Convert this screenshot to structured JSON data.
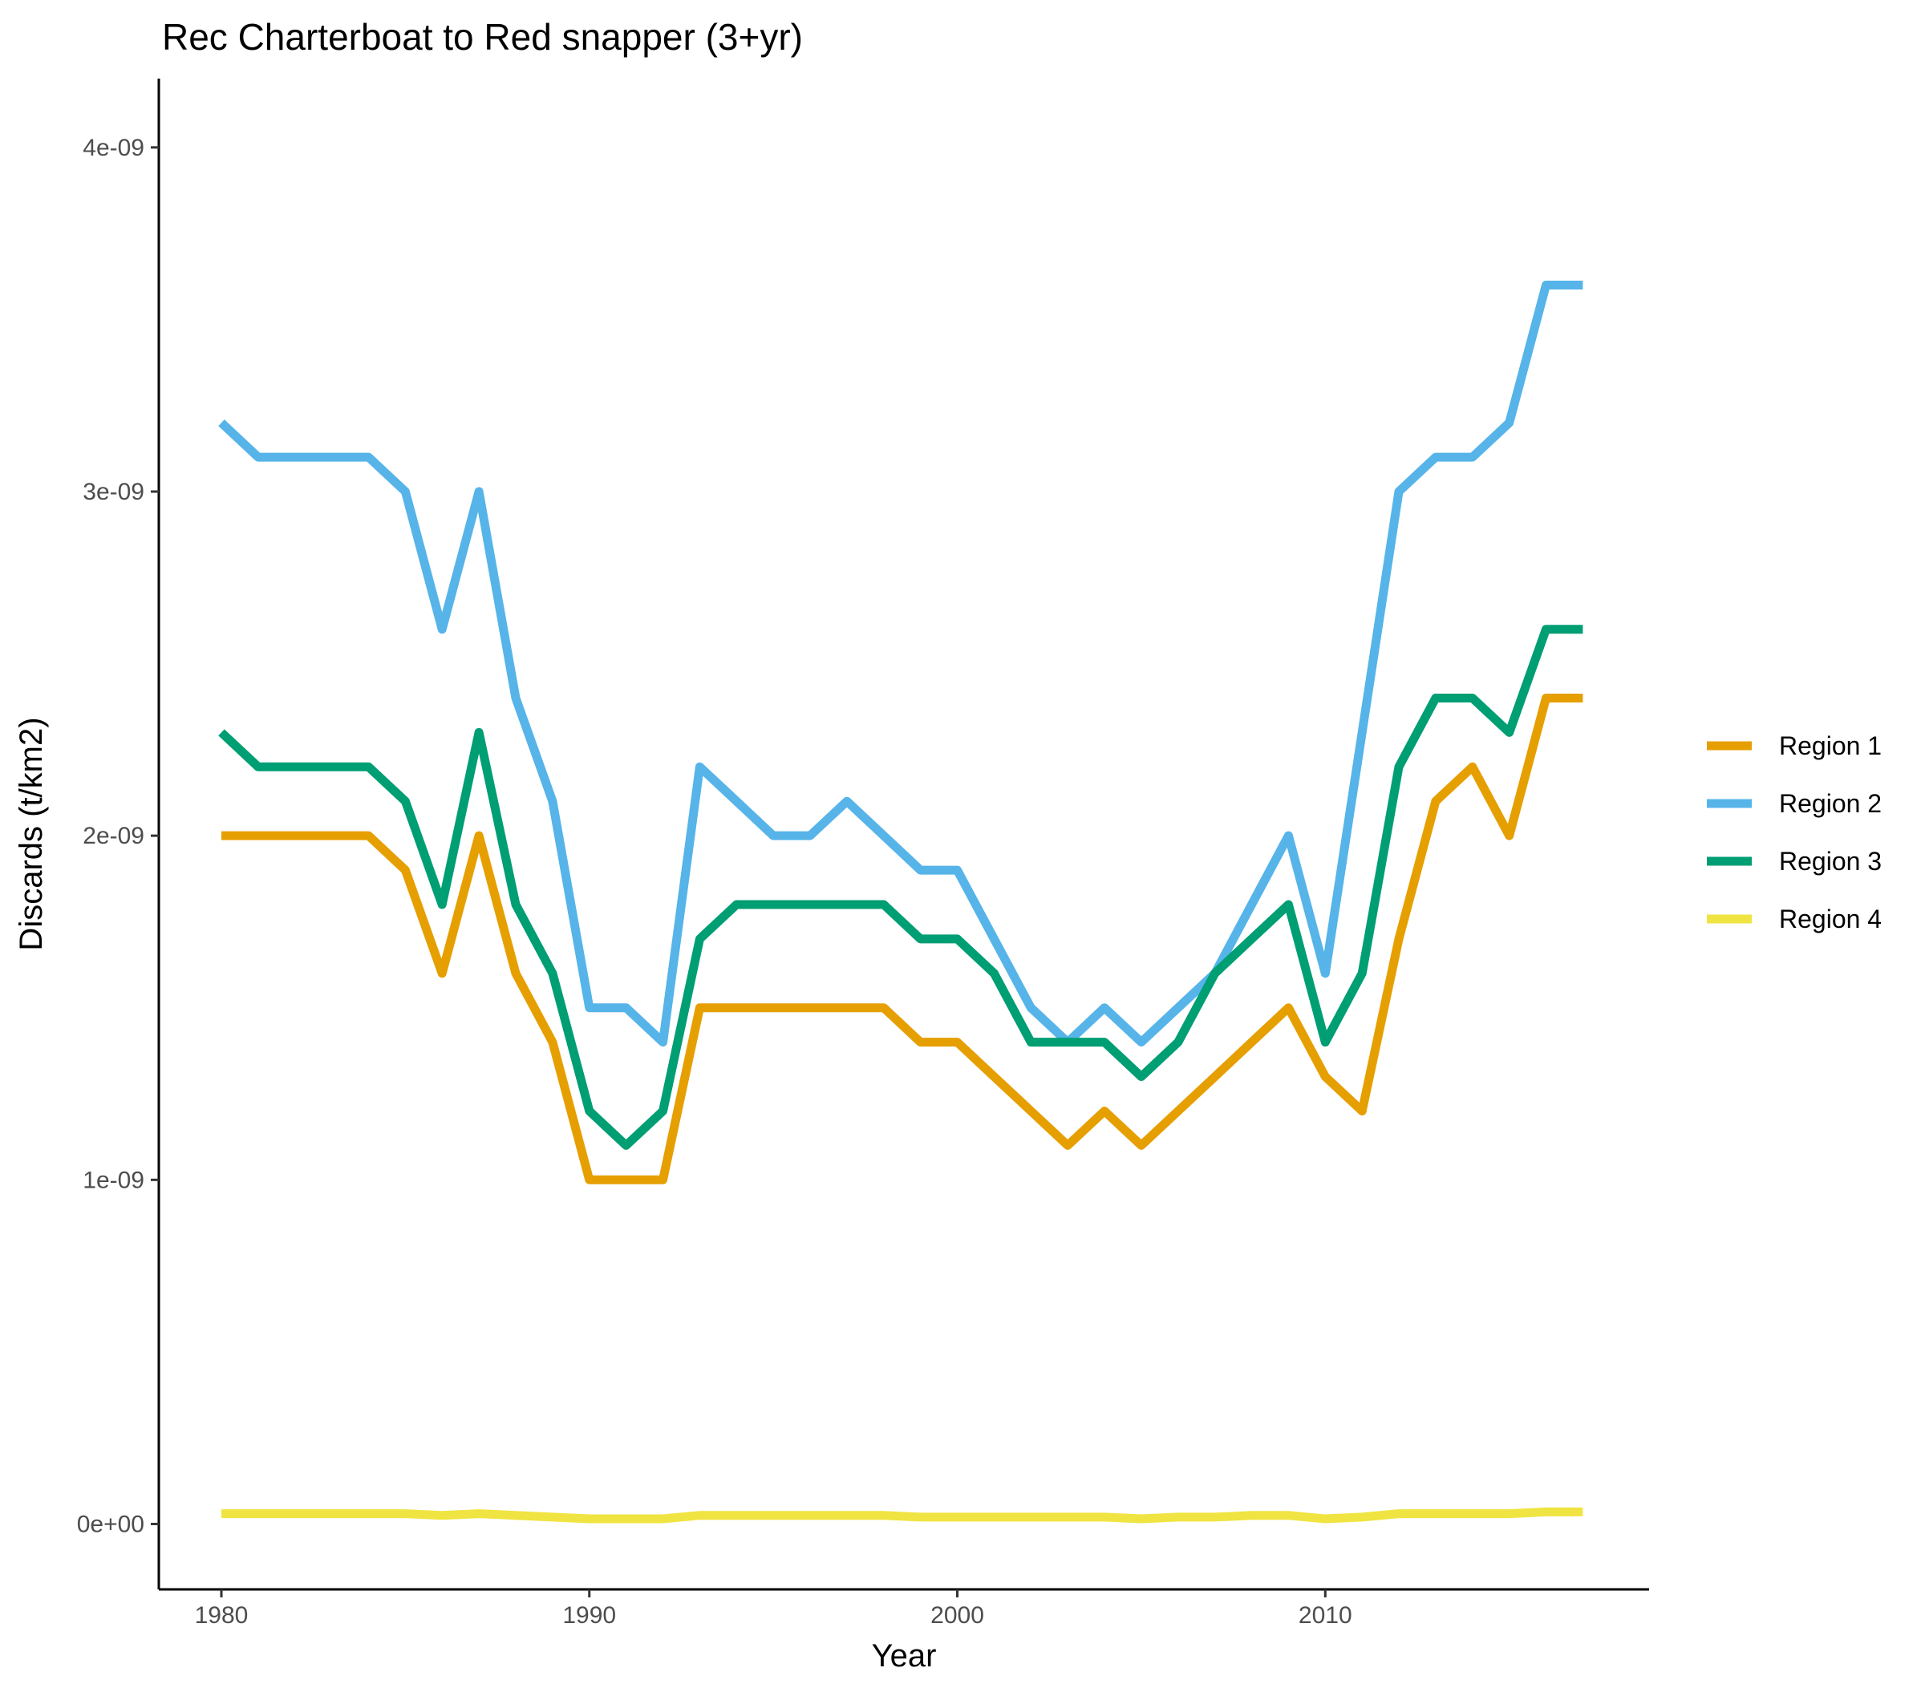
{
  "chart_data": {
    "type": "line",
    "title": "Rec Charterboat to Red snapper (3+yr)",
    "xlabel": "Year",
    "ylabel": "Discards (t/km2)",
    "xlim": [
      1978.3,
      2018.8
    ],
    "ylim": [
      -1.9e-10,
      4.2e-09
    ],
    "x_ticks": [
      1980,
      1990,
      2000,
      2010
    ],
    "x_tick_labels": [
      "1980",
      "1990",
      "2000",
      "2010"
    ],
    "y_ticks": [
      0,
      1e-09,
      2e-09,
      3e-09,
      4e-09
    ],
    "y_tick_labels": [
      "0e+00",
      "1e-09",
      "2e-09",
      "3e-09",
      "4e-09"
    ],
    "grid": false,
    "legend_position": "right",
    "x": [
      1980,
      1981,
      1982,
      1983,
      1984,
      1985,
      1986,
      1987,
      1988,
      1989,
      1990,
      1991,
      1992,
      1993,
      1994,
      1995,
      1996,
      1997,
      1998,
      1999,
      2000,
      2001,
      2002,
      2003,
      2004,
      2005,
      2006,
      2007,
      2008,
      2009,
      2010,
      2011,
      2012,
      2013,
      2014,
      2015,
      2016,
      2017
    ],
    "series": [
      {
        "name": "Region 1",
        "color": "#E69F00",
        "values": [
          2e-09,
          2e-09,
          2e-09,
          2e-09,
          2e-09,
          1.9e-09,
          1.6e-09,
          2e-09,
          1.6e-09,
          1.4e-09,
          1e-09,
          1e-09,
          1e-09,
          1.5e-09,
          1.5e-09,
          1.5e-09,
          1.5e-09,
          1.5e-09,
          1.5e-09,
          1.4e-09,
          1.4e-09,
          1.3e-09,
          1.2e-09,
          1.1e-09,
          1.2e-09,
          1.1e-09,
          1.2e-09,
          1.3e-09,
          1.4e-09,
          1.5e-09,
          1.3e-09,
          1.2e-09,
          1.7e-09,
          2.1e-09,
          2.2e-09,
          2e-09,
          2.4e-09,
          2.4e-09
        ]
      },
      {
        "name": "Region 2",
        "color": "#56B4E9",
        "values": [
          3.2e-09,
          3.1e-09,
          3.1e-09,
          3.1e-09,
          3.1e-09,
          3e-09,
          2.6e-09,
          3e-09,
          2.4e-09,
          2.1e-09,
          1.5e-09,
          1.5e-09,
          1.4e-09,
          2.2e-09,
          2.1e-09,
          2e-09,
          2e-09,
          2.1e-09,
          2e-09,
          1.9e-09,
          1.9e-09,
          1.7e-09,
          1.5e-09,
          1.4e-09,
          1.5e-09,
          1.4e-09,
          1.5e-09,
          1.6e-09,
          1.8e-09,
          2e-09,
          1.6e-09,
          2.3e-09,
          3e-09,
          3.1e-09,
          3.1e-09,
          3.2e-09,
          3.6e-09,
          3.6e-09
        ]
      },
      {
        "name": "Region 3",
        "color": "#009E73",
        "values": [
          2.3e-09,
          2.2e-09,
          2.2e-09,
          2.2e-09,
          2.2e-09,
          2.1e-09,
          1.8e-09,
          2.3e-09,
          1.8e-09,
          1.6e-09,
          1.2e-09,
          1.1e-09,
          1.2e-09,
          1.7e-09,
          1.8e-09,
          1.8e-09,
          1.8e-09,
          1.8e-09,
          1.8e-09,
          1.7e-09,
          1.7e-09,
          1.6e-09,
          1.4e-09,
          1.4e-09,
          1.4e-09,
          1.3e-09,
          1.4e-09,
          1.6e-09,
          1.7e-09,
          1.8e-09,
          1.4e-09,
          1.6e-09,
          2.2e-09,
          2.4e-09,
          2.4e-09,
          2.3e-09,
          2.6e-09,
          2.6e-09
        ]
      },
      {
        "name": "Region 4",
        "color": "#F0E442",
        "values": [
          3e-11,
          3e-11,
          3e-11,
          3e-11,
          3e-11,
          3e-11,
          2.5e-11,
          3e-11,
          2.5e-11,
          2e-11,
          1.5e-11,
          1.5e-11,
          1.5e-11,
          2.5e-11,
          2.5e-11,
          2.5e-11,
          2.5e-11,
          2.5e-11,
          2.5e-11,
          2e-11,
          2e-11,
          2e-11,
          2e-11,
          2e-11,
          2e-11,
          1.5e-11,
          2e-11,
          2e-11,
          2.5e-11,
          2.5e-11,
          1.5e-11,
          2e-11,
          3e-11,
          3e-11,
          3e-11,
          3e-11,
          3.5e-11,
          3.5e-11
        ]
      }
    ]
  }
}
